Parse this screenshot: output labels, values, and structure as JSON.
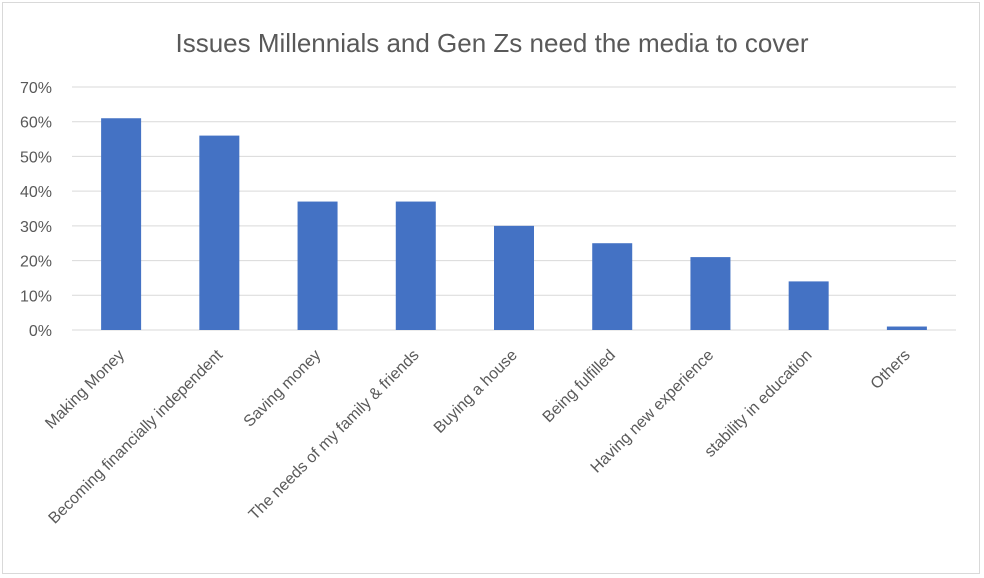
{
  "chart_data": {
    "type": "bar",
    "title": "Issues Millennials and Gen Zs need the media to cover",
    "xlabel": "",
    "ylabel": "",
    "categories": [
      "Making Money",
      "Becoming financially independent",
      "Saving money",
      "The needs of my family & friends",
      "Buying a house",
      "Being fulfilled",
      "Having new experience",
      "stability in education",
      "Others"
    ],
    "values": [
      61,
      56,
      37,
      37,
      30,
      25,
      21,
      14,
      1
    ],
    "ylim": [
      0,
      70
    ],
    "yticks": [
      "0%",
      "10%",
      "20%",
      "30%",
      "40%",
      "50%",
      "60%",
      "70%"
    ],
    "grid": true,
    "bar_color": "#4472C4",
    "grid_color": "#d9d9d9",
    "legend": "none"
  }
}
